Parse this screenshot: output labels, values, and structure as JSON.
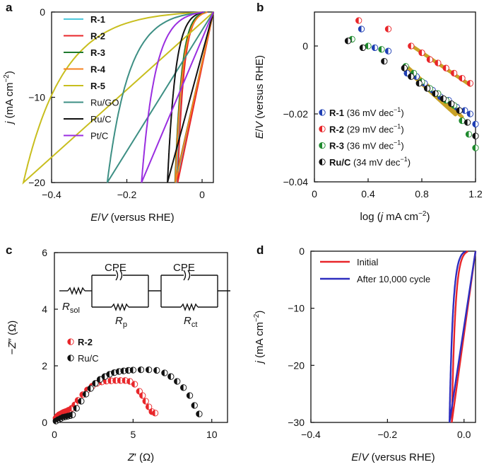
{
  "panels": [
    {
      "letter": "a",
      "type": "line",
      "xlabel_html": "<tspan font-style='italic'>E</tspan>/<tspan font-style='italic'>V</tspan> (versus RHE)",
      "ylabel_html": "<tspan font-style='italic'>j</tspan> (mA cm<tspan dy='-6' font-size='10'>−2</tspan><tspan dy='6'>)</tspan>",
      "xlim": [
        -0.4,
        0.03
      ],
      "ylim": [
        -20,
        0
      ],
      "xticks": [
        -0.4,
        -0.2,
        0
      ],
      "xtick_labels": [
        "−0.4",
        "−0.2",
        "0"
      ],
      "yticks": [
        0,
        -10,
        -20
      ],
      "ytick_labels": [
        "0",
        "−10",
        "−20"
      ],
      "series": [
        {
          "name": "R-1",
          "bold": true,
          "color": "#4dc8dc",
          "onset": 0.012,
          "slope": 0.08
        },
        {
          "name": "R-2",
          "bold": true,
          "color": "#e8262a",
          "onset": 0.01,
          "slope": 0.075
        },
        {
          "name": "R-3",
          "bold": true,
          "color": "#1f7a2e",
          "onset": 0.008,
          "slope": 0.08
        },
        {
          "name": "R-4",
          "bold": true,
          "color": "#f58220",
          "onset": 0.014,
          "slope": 0.085
        },
        {
          "name": "R-5",
          "bold": true,
          "color": "#c8be1e",
          "onset": 0.005,
          "slope": 0.48
        },
        {
          "name": "Ru/GO",
          "bold": false,
          "color": "#3d8f84",
          "onset": 0.008,
          "slope": 0.26
        },
        {
          "name": "Ru/C",
          "bold": false,
          "color": "#111111",
          "onset": 0.003,
          "slope": 0.095
        },
        {
          "name": "Pt/C",
          "bold": false,
          "color": "#9a2ee0",
          "onset": 0.004,
          "slope": 0.165
        }
      ]
    },
    {
      "letter": "b",
      "type": "scatter",
      "xlabel_html": "log (<tspan font-style='italic'>j</tspan> mA cm<tspan dy='-6' font-size='10'>−2</tspan><tspan dy='6'>)</tspan>",
      "ylabel_html": "<tspan font-style='italic'>E</tspan>/<tspan font-style='italic'>V</tspan> (versus RHE)",
      "xlim": [
        0,
        1.2
      ],
      "ylim": [
        -0.04,
        0.01
      ],
      "xticks": [
        0,
        0.4,
        0.8,
        1.2
      ],
      "xtick_labels": [
        "0",
        "0.4",
        "0.8",
        "1.2"
      ],
      "yticks": [
        0,
        -0.02,
        -0.04
      ],
      "ytick_labels": [
        "0",
        "−0.02",
        "−0.04"
      ],
      "fit_color": "#c9a227",
      "series": [
        {
          "name": "R-1",
          "tafel": "(36 mV dec",
          "color": "#1f3fb4",
          "x": [
            0.35,
            0.45,
            0.55,
            0.69,
            0.76,
            0.82,
            0.88,
            0.94,
            1.0,
            1.06,
            1.12,
            1.16,
            1.2
          ],
          "y": [
            0.005,
            -0.0005,
            -0.0015,
            -0.008,
            -0.009,
            -0.011,
            -0.013,
            -0.015,
            -0.016,
            -0.018,
            -0.019,
            -0.02,
            -0.023
          ],
          "fit_x": [
            0.69,
            1.05
          ],
          "fit_y": [
            -0.0072,
            -0.0202
          ]
        },
        {
          "name": "R-2",
          "tafel": "(29 mV dec",
          "color": "#e8262a",
          "x": [
            0.33,
            0.55,
            0.72,
            0.8,
            0.86,
            0.92,
            0.98,
            1.04,
            1.1,
            1.16
          ],
          "y": [
            0.0075,
            0.005,
            0.0,
            -0.002,
            -0.004,
            -0.005,
            -0.0065,
            -0.008,
            -0.0095,
            -0.011
          ],
          "fit_x": [
            0.72,
            1.16
          ],
          "fit_y": [
            0.0002,
            -0.0115
          ]
        },
        {
          "name": "R-3",
          "tafel": "(36 mV dec",
          "color": "#1f8a2e",
          "x": [
            0.28,
            0.4,
            0.5,
            0.68,
            0.74,
            0.8,
            0.86,
            0.92,
            0.98,
            1.04,
            1.1,
            1.15,
            1.2
          ],
          "y": [
            0.002,
            0.0,
            -0.001,
            -0.006,
            -0.008,
            -0.0105,
            -0.0125,
            -0.014,
            -0.016,
            -0.0175,
            -0.022,
            -0.026,
            -0.03
          ],
          "fit_x": [
            0.68,
            1.1
          ],
          "fit_y": [
            -0.0057,
            -0.0209
          ]
        },
        {
          "name": "Ru/C",
          "tafel": "(34 mV dec",
          "color": "#111111",
          "x": [
            0.25,
            0.36,
            0.52,
            0.67,
            0.72,
            0.78,
            0.84,
            0.9,
            0.96,
            1.02,
            1.08,
            1.14,
            1.2
          ],
          "y": [
            0.0015,
            -0.0005,
            -0.0045,
            -0.0065,
            -0.009,
            -0.011,
            -0.0125,
            -0.014,
            -0.0155,
            -0.017,
            -0.019,
            -0.0225,
            -0.0265
          ],
          "fit_x": [
            0.67,
            1.02
          ],
          "fit_y": [
            -0.0062,
            -0.0181
          ]
        }
      ]
    },
    {
      "letter": "c",
      "type": "scatter",
      "xlabel_html": "<tspan font-style='italic'>Z</tspan>′ (Ω)",
      "ylabel_html": "−<tspan font-style='italic'>Z</tspan>″ (Ω)",
      "xlim": [
        0,
        11
      ],
      "ylim": [
        0,
        6
      ],
      "xticks": [
        0,
        5,
        10
      ],
      "xtick_labels": [
        "0",
        "5",
        "10"
      ],
      "yticks": [
        0,
        2,
        4,
        6
      ],
      "ytick_labels": [
        "0",
        "2",
        "4",
        "6"
      ],
      "circuit": {
        "cpe": "CPE",
        "r_sol": "R",
        "r_sol_sub": "sol",
        "r_p": "R",
        "r_p_sub": "p",
        "r_ct": "R",
        "r_ct_sub": "ct"
      },
      "series": [
        {
          "name": "R-2",
          "bold": true,
          "color": "#e8262a",
          "x": [
            0.1,
            0.2,
            0.3,
            0.4,
            0.5,
            0.6,
            0.7,
            0.8,
            0.9,
            1.0,
            1.1,
            1.3,
            1.5,
            1.8,
            2.1,
            2.4,
            2.7,
            3.0,
            3.3,
            3.6,
            3.9,
            4.2,
            4.5,
            4.8,
            5.1,
            5.4,
            5.6,
            5.8,
            6.0,
            6.2,
            6.4
          ],
          "y": [
            0.15,
            0.22,
            0.27,
            0.3,
            0.33,
            0.36,
            0.38,
            0.4,
            0.43,
            0.45,
            0.5,
            0.62,
            0.78,
            0.98,
            1.15,
            1.28,
            1.38,
            1.43,
            1.46,
            1.47,
            1.48,
            1.48,
            1.48,
            1.45,
            1.35,
            1.1,
            0.95,
            0.75,
            0.55,
            0.38,
            0.33
          ]
        },
        {
          "name": "Ru/C",
          "bold": false,
          "color": "#111111",
          "x": [
            0.1,
            0.25,
            0.4,
            0.55,
            0.7,
            0.85,
            1.0,
            1.15,
            1.4,
            1.7,
            2.0,
            2.3,
            2.6,
            2.9,
            3.2,
            3.5,
            3.8,
            4.1,
            4.4,
            4.7,
            5.0,
            5.5,
            6.0,
            6.5,
            7.0,
            7.4,
            7.8,
            8.2,
            8.6,
            8.9,
            9.2
          ],
          "y": [
            0.05,
            0.1,
            0.14,
            0.18,
            0.2,
            0.22,
            0.24,
            0.27,
            0.5,
            0.75,
            1.0,
            1.2,
            1.38,
            1.52,
            1.62,
            1.7,
            1.76,
            1.8,
            1.82,
            1.84,
            1.85,
            1.86,
            1.86,
            1.84,
            1.75,
            1.62,
            1.45,
            1.23,
            0.95,
            0.6,
            0.3
          ]
        }
      ]
    },
    {
      "letter": "d",
      "type": "line",
      "xlabel_html": "<tspan font-style='italic'>E</tspan>/<tspan font-style='italic'>V</tspan> (versus RHE)",
      "ylabel_html": "<tspan font-style='italic'>j</tspan> (mA cm<tspan dy='-6' font-size='10'>−2</tspan><tspan dy='6'>)</tspan>",
      "xlim": [
        -0.4,
        0.03
      ],
      "ylim": [
        -30,
        0
      ],
      "xticks": [
        -0.4,
        -0.2,
        0
      ],
      "xtick_labels": [
        "−0.4",
        "−0.2",
        "0.0"
      ],
      "yticks": [
        0,
        -10,
        -20,
        -30
      ],
      "ytick_labels": [
        "0",
        "−10",
        "−20",
        "−30"
      ],
      "series": [
        {
          "name": "Initial",
          "bold": false,
          "color": "#e8262a",
          "onset": 0.01,
          "slope": 0.042
        },
        {
          "name": "After 10,000 cycle",
          "bold": false,
          "color": "#2e2ebf",
          "onset": 0.004,
          "slope": 0.042
        }
      ]
    }
  ]
}
